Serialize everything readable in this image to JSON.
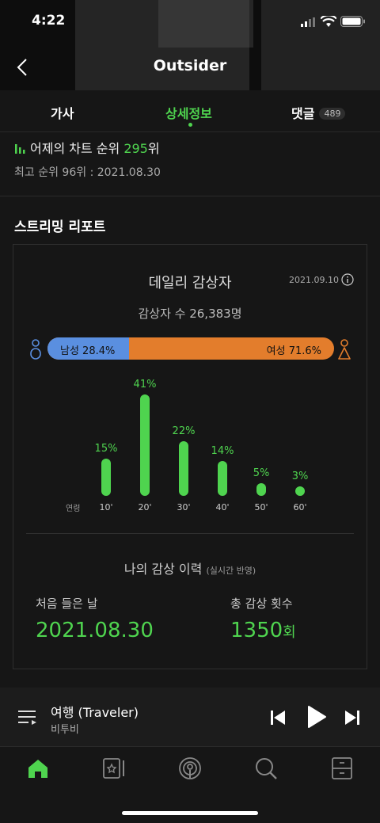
{
  "status": {
    "time": "4:22"
  },
  "header": {
    "title": "Outsider"
  },
  "tabs": [
    {
      "label": "가사"
    },
    {
      "label": "상세정보"
    },
    {
      "label": "댓글",
      "count": "489"
    }
  ],
  "chart_rank": {
    "prefix": "어제의 차트 순위",
    "rank": "295",
    "suffix": "위",
    "peak_text": "최고 순위 96위 : 2021.08.30"
  },
  "streaming": {
    "section_title": "스트리밍 리포트",
    "daily_title": "데일리 감상자",
    "date": "2021.09.10",
    "listeners_text": "감상자 수 26,383명",
    "gender": {
      "male_label": "남성 28.4%",
      "female_label": "여성 71.6%",
      "male_fraction": 0.284,
      "male_color": "#5a8fe0",
      "female_color": "#e37d2c"
    },
    "age_axis_label": "연령",
    "ages": [
      {
        "label": "10'",
        "pct": "15%",
        "value": 15
      },
      {
        "label": "20'",
        "pct": "41%",
        "value": 41
      },
      {
        "label": "30'",
        "pct": "22%",
        "value": 22
      },
      {
        "label": "40'",
        "pct": "14%",
        "value": 14
      },
      {
        "label": "50'",
        "pct": "5%",
        "value": 5
      },
      {
        "label": "60'",
        "pct": "3%",
        "value": 3
      }
    ]
  },
  "history": {
    "title": "나의 감상 이력",
    "subtitle": "(실시간 반영)",
    "first_label": "처음 들은 날",
    "first_value": "2021.08.30",
    "total_label": "총 감상 횟수",
    "total_value": "1350",
    "total_unit": "회"
  },
  "player": {
    "song": "여행 (Traveler)",
    "artist": "비투비"
  },
  "colors": {
    "accent": "#4fd44f",
    "background": "#161616"
  },
  "nav": {
    "icons": [
      "home-icon",
      "library-icon",
      "podcast-icon",
      "search-icon",
      "storage-icon"
    ]
  }
}
